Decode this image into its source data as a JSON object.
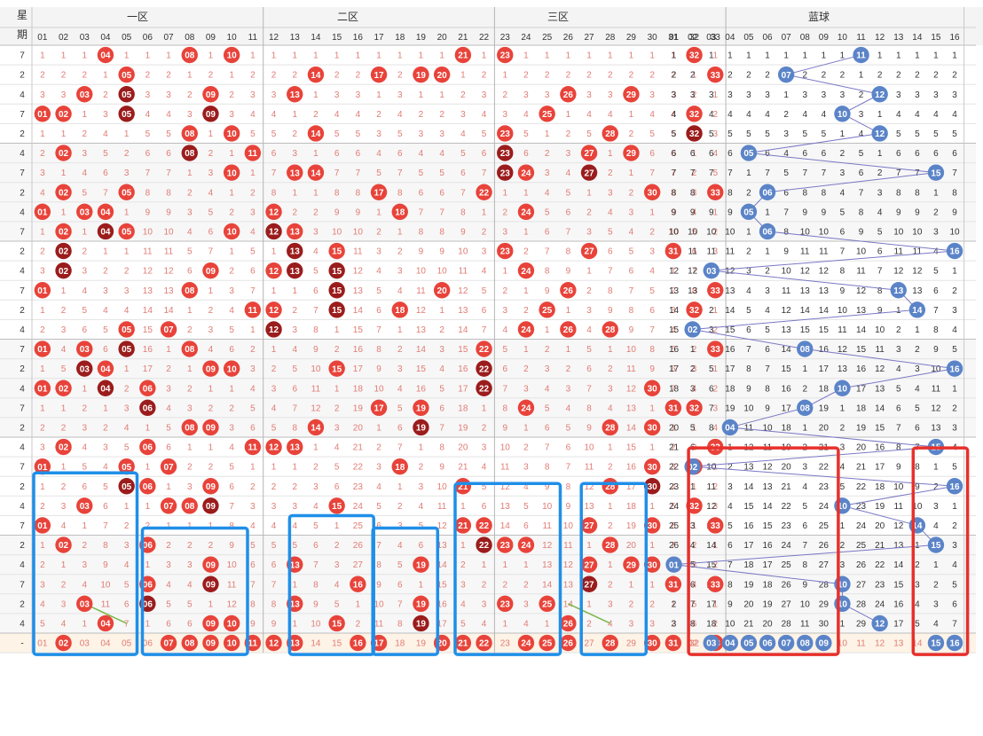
{
  "header": {
    "col_week_top": "星",
    "col_week_bottom": "期",
    "zone1_title": "一区",
    "zone2_title": "二区",
    "zone3_title": "三区",
    "blue_title": "蓝球",
    "red_numbers": [
      "01",
      "02",
      "03",
      "04",
      "05",
      "06",
      "07",
      "08",
      "09",
      "10",
      "11",
      "12",
      "13",
      "14",
      "15",
      "16",
      "17",
      "18",
      "19",
      "20",
      "21",
      "22",
      "23",
      "24",
      "25",
      "26",
      "27",
      "28",
      "29",
      "30",
      "31",
      "32",
      "33"
    ],
    "blue_numbers": [
      "01",
      "02",
      "03",
      "04",
      "05",
      "06",
      "07",
      "08",
      "09",
      "10",
      "11",
      "12",
      "13",
      "14",
      "15",
      "16"
    ]
  },
  "footer": {
    "week_label": "-",
    "red_selected": [
      2,
      7,
      8,
      9,
      10,
      11,
      12,
      13,
      16,
      17,
      20,
      21,
      22,
      24,
      25,
      26,
      28,
      30,
      31,
      33
    ],
    "blue_selected": [
      3,
      4,
      5,
      6,
      7,
      8,
      9,
      15,
      16
    ]
  },
  "chart_data": {
    "type": "table",
    "rows": [
      {
        "week": "7",
        "red": [
          4,
          8,
          10,
          21,
          23,
          32
        ],
        "blue": 11
      },
      {
        "week": "2",
        "red": [
          5,
          14,
          17,
          19,
          20,
          33
        ],
        "blue": 7
      },
      {
        "week": "4",
        "red": [
          3,
          5,
          9,
          13,
          26,
          29
        ],
        "blue": 12
      },
      {
        "week": "7",
        "red": [
          1,
          2,
          5,
          9,
          25,
          32
        ],
        "blue": 10
      },
      {
        "week": "2",
        "red": [
          8,
          10,
          14,
          23,
          28,
          32
        ],
        "blue": 12
      },
      {
        "week": "4",
        "red": [
          2,
          8,
          11,
          23,
          27,
          29
        ],
        "blue": 5
      },
      {
        "week": "7",
        "red": [
          10,
          13,
          14,
          23,
          24,
          27
        ],
        "blue": 15
      },
      {
        "week": "2",
        "red": [
          2,
          5,
          17,
          22,
          30,
          33
        ],
        "blue": 6
      },
      {
        "week": "4",
        "red": [
          1,
          3,
          4,
          12,
          18,
          24
        ],
        "blue": 5
      },
      {
        "week": "7",
        "red": [
          2,
          4,
          5,
          10,
          12,
          13
        ],
        "blue": 6
      },
      {
        "week": "2",
        "red": [
          2,
          13,
          15,
          23,
          27,
          31
        ],
        "blue": 16
      },
      {
        "week": "4",
        "red": [
          2,
          9,
          12,
          13,
          15,
          24
        ],
        "blue": 3
      },
      {
        "week": "7",
        "red": [
          1,
          8,
          15,
          20,
          26,
          33
        ],
        "blue": 13
      },
      {
        "week": "2",
        "red": [
          11,
          12,
          15,
          18,
          25,
          32
        ],
        "blue": 14
      },
      {
        "week": "4",
        "red": [
          5,
          7,
          12,
          24,
          26,
          28
        ],
        "blue": 2
      },
      {
        "week": "7",
        "red": [
          1,
          3,
          5,
          8,
          22,
          33
        ],
        "blue": 8
      },
      {
        "week": "2",
        "red": [
          3,
          4,
          9,
          10,
          15,
          22
        ],
        "blue": 16
      },
      {
        "week": "4",
        "red": [
          1,
          2,
          4,
          6,
          22,
          30
        ],
        "blue": 10
      },
      {
        "week": "7",
        "red": [
          6,
          17,
          19,
          24,
          31,
          32
        ],
        "blue": 8
      },
      {
        "week": "2",
        "red": [
          8,
          9,
          14,
          19,
          28,
          30
        ],
        "blue": 4
      },
      {
        "week": "4",
        "red": [
          2,
          6,
          11,
          12,
          13,
          33
        ],
        "blue": 15
      },
      {
        "week": "7",
        "red": [
          1,
          5,
          7,
          18,
          30,
          32
        ],
        "blue": 2
      },
      {
        "week": "2",
        "red": [
          5,
          6,
          9,
          21,
          28,
          30
        ],
        "blue": 16
      },
      {
        "week": "4",
        "red": [
          3,
          7,
          8,
          9,
          15,
          32
        ],
        "blue": 10
      },
      {
        "week": "7",
        "red": [
          1,
          21,
          22,
          27,
          30,
          33
        ],
        "blue": 14
      },
      {
        "week": "2",
        "red": [
          2,
          6,
          22,
          23,
          24,
          28
        ],
        "blue": 15
      },
      {
        "week": "4",
        "red": [
          9,
          13,
          19,
          27,
          29,
          30
        ],
        "blue": 1
      },
      {
        "week": "7",
        "red": [
          6,
          9,
          16,
          27,
          31,
          33
        ],
        "blue": 10
      },
      {
        "week": "2",
        "red": [
          3,
          6,
          13,
          19,
          23,
          25
        ],
        "blue": 10
      },
      {
        "week": "4",
        "red": [
          4,
          9,
          10,
          15,
          19,
          26
        ],
        "blue": 12
      }
    ]
  },
  "colors": {
    "red_ball": "#e8433a",
    "dark_ball": "#9b1c1c",
    "blue_ball": "#5b84c8",
    "miss_red": "#e07c74",
    "miss_blue": "#333333",
    "line_blue": "#7a78c4",
    "trend_green": "#7ab648",
    "box_blue": "#1f8fe8",
    "box_red": "#e8302b"
  }
}
